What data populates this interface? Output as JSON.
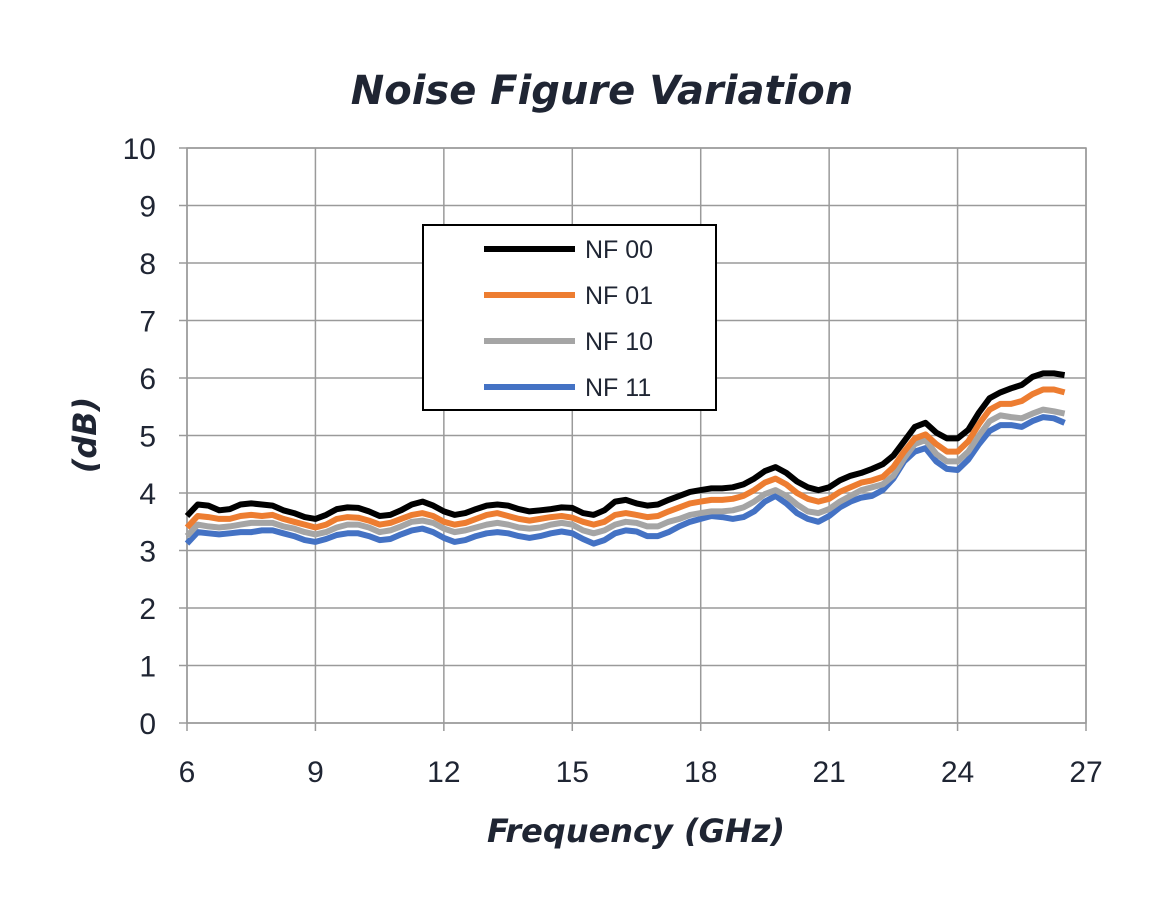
{
  "chart_data": {
    "type": "line",
    "title": "Noise Figure Variation",
    "xlabel": "Frequency (GHz)",
    "ylabel": "(dB)",
    "xlim": [
      6,
      27
    ],
    "ylim": [
      0,
      10
    ],
    "xticks": [
      "6",
      "9",
      "12",
      "15",
      "18",
      "21",
      "24",
      "27"
    ],
    "yticks": [
      "0",
      "1",
      "2",
      "3",
      "4",
      "5",
      "6",
      "7",
      "8",
      "9",
      "10"
    ],
    "grid": true,
    "legend_position": "upper-center",
    "x": [
      6.0,
      6.25,
      6.5,
      6.75,
      7.0,
      7.25,
      7.5,
      7.75,
      8.0,
      8.25,
      8.5,
      8.75,
      9.0,
      9.25,
      9.5,
      9.75,
      10.0,
      10.25,
      10.5,
      10.75,
      11.0,
      11.25,
      11.5,
      11.75,
      12.0,
      12.25,
      12.5,
      12.75,
      13.0,
      13.25,
      13.5,
      13.75,
      14.0,
      14.25,
      14.5,
      14.75,
      15.0,
      15.25,
      15.5,
      15.75,
      16.0,
      16.25,
      16.5,
      16.75,
      17.0,
      17.25,
      17.5,
      17.75,
      18.0,
      18.25,
      18.5,
      18.75,
      19.0,
      19.25,
      19.5,
      19.75,
      20.0,
      20.25,
      20.5,
      20.75,
      21.0,
      21.25,
      21.5,
      21.75,
      22.0,
      22.25,
      22.5,
      22.75,
      23.0,
      23.25,
      23.5,
      23.75,
      24.0,
      24.25,
      24.5,
      24.75,
      25.0,
      25.25,
      25.5,
      25.75,
      26.0,
      26.25,
      26.5
    ],
    "series": [
      {
        "name": "NF 00",
        "color": "#000000",
        "values": [
          3.6,
          3.8,
          3.78,
          3.7,
          3.72,
          3.8,
          3.82,
          3.8,
          3.78,
          3.7,
          3.65,
          3.58,
          3.55,
          3.62,
          3.72,
          3.75,
          3.74,
          3.68,
          3.6,
          3.62,
          3.7,
          3.8,
          3.85,
          3.78,
          3.68,
          3.62,
          3.65,
          3.72,
          3.78,
          3.8,
          3.78,
          3.72,
          3.68,
          3.7,
          3.72,
          3.75,
          3.74,
          3.65,
          3.62,
          3.7,
          3.85,
          3.88,
          3.82,
          3.78,
          3.8,
          3.88,
          3.95,
          4.02,
          4.05,
          4.08,
          4.08,
          4.1,
          4.15,
          4.25,
          4.38,
          4.45,
          4.35,
          4.2,
          4.1,
          4.05,
          4.1,
          4.22,
          4.3,
          4.35,
          4.42,
          4.5,
          4.65,
          4.9,
          5.15,
          5.22,
          5.05,
          4.95,
          4.95,
          5.1,
          5.4,
          5.65,
          5.75,
          5.82,
          5.88,
          6.02,
          6.08,
          6.08,
          6.05
        ]
      },
      {
        "name": "NF 01",
        "color": "#ed7d31",
        "values": [
          3.4,
          3.6,
          3.58,
          3.55,
          3.55,
          3.6,
          3.62,
          3.6,
          3.62,
          3.55,
          3.5,
          3.45,
          3.4,
          3.45,
          3.55,
          3.58,
          3.57,
          3.52,
          3.45,
          3.48,
          3.55,
          3.62,
          3.65,
          3.6,
          3.5,
          3.45,
          3.48,
          3.55,
          3.62,
          3.65,
          3.6,
          3.55,
          3.52,
          3.55,
          3.58,
          3.6,
          3.57,
          3.5,
          3.45,
          3.5,
          3.62,
          3.65,
          3.62,
          3.58,
          3.6,
          3.68,
          3.75,
          3.82,
          3.85,
          3.88,
          3.88,
          3.9,
          3.95,
          4.05,
          4.18,
          4.25,
          4.15,
          4.0,
          3.9,
          3.85,
          3.9,
          4.02,
          4.1,
          4.18,
          4.22,
          4.28,
          4.45,
          4.72,
          4.95,
          5.02,
          4.85,
          4.72,
          4.72,
          4.9,
          5.2,
          5.45,
          5.55,
          5.55,
          5.6,
          5.72,
          5.8,
          5.8,
          5.75
        ]
      },
      {
        "name": "NF 10",
        "color": "#a5a5a5",
        "values": [
          3.25,
          3.45,
          3.42,
          3.4,
          3.42,
          3.45,
          3.48,
          3.48,
          3.48,
          3.42,
          3.38,
          3.32,
          3.28,
          3.32,
          3.4,
          3.45,
          3.45,
          3.4,
          3.32,
          3.35,
          3.42,
          3.5,
          3.52,
          3.48,
          3.38,
          3.32,
          3.35,
          3.4,
          3.45,
          3.48,
          3.45,
          3.4,
          3.38,
          3.4,
          3.45,
          3.48,
          3.45,
          3.35,
          3.3,
          3.35,
          3.45,
          3.5,
          3.48,
          3.42,
          3.42,
          3.5,
          3.55,
          3.62,
          3.65,
          3.68,
          3.68,
          3.7,
          3.75,
          3.85,
          3.98,
          4.05,
          3.95,
          3.8,
          3.68,
          3.65,
          3.72,
          3.85,
          3.95,
          4.05,
          4.1,
          4.15,
          4.3,
          4.6,
          4.85,
          4.92,
          4.68,
          4.55,
          4.55,
          4.72,
          5.0,
          5.25,
          5.35,
          5.32,
          5.3,
          5.38,
          5.45,
          5.42,
          5.38
        ]
      },
      {
        "name": "NF 11",
        "color": "#4472c4",
        "values": [
          3.12,
          3.32,
          3.3,
          3.28,
          3.3,
          3.32,
          3.32,
          3.35,
          3.35,
          3.3,
          3.25,
          3.18,
          3.15,
          3.2,
          3.27,
          3.3,
          3.3,
          3.25,
          3.18,
          3.2,
          3.28,
          3.35,
          3.38,
          3.32,
          3.22,
          3.15,
          3.18,
          3.25,
          3.3,
          3.32,
          3.3,
          3.25,
          3.22,
          3.25,
          3.3,
          3.33,
          3.3,
          3.2,
          3.12,
          3.18,
          3.3,
          3.35,
          3.33,
          3.25,
          3.25,
          3.32,
          3.42,
          3.5,
          3.55,
          3.6,
          3.58,
          3.55,
          3.58,
          3.68,
          3.85,
          3.95,
          3.82,
          3.65,
          3.55,
          3.5,
          3.6,
          3.75,
          3.85,
          3.92,
          3.95,
          4.05,
          4.25,
          4.55,
          4.72,
          4.78,
          4.55,
          4.42,
          4.4,
          4.58,
          4.85,
          5.08,
          5.18,
          5.18,
          5.15,
          5.25,
          5.32,
          5.3,
          5.22
        ]
      }
    ]
  }
}
